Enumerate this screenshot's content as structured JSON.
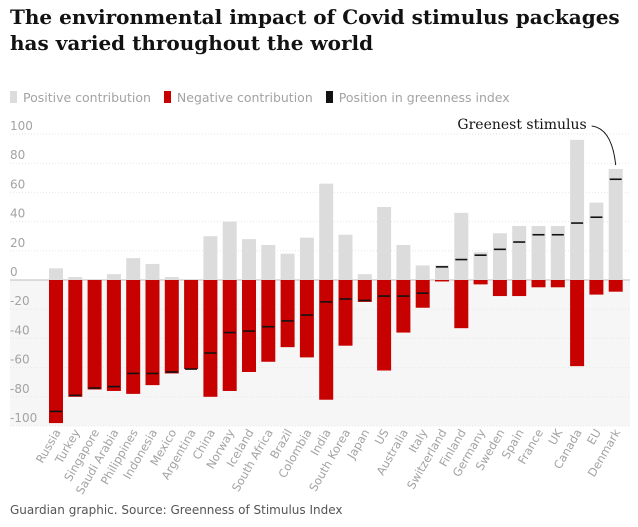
{
  "title": "The environmental impact of Covid stimulus packages has varied throughout the world",
  "legend": [
    {
      "label": "Positive contribution",
      "color": "#dcdcdc"
    },
    {
      "label": "Negative contribution",
      "color": "#c70000"
    },
    {
      "label": "Position in greenness index",
      "color": "#121212"
    }
  ],
  "footer": "Guardian graphic. Source: Greenness of Stimulus Index",
  "chart_data": {
    "type": "bar",
    "categories": [
      "Russia",
      "Turkey",
      "Singapore",
      "Saudi Arabia",
      "Philippines",
      "Indonesia",
      "Mexico",
      "Argentina",
      "China",
      "Norway",
      "Iceland",
      "South Africa",
      "Brazil",
      "Colombia",
      "India",
      "South Korea",
      "Japan",
      "US",
      "Australia",
      "Italy",
      "Switzerland",
      "Finland",
      "Germany",
      "Sweden",
      "Spain",
      "France",
      "UK",
      "Canada",
      "EU",
      "Denmark"
    ],
    "series": [
      {
        "name": "Positive contribution",
        "values": [
          8,
          2,
          0,
          4,
          15,
          11,
          2,
          0,
          30,
          40,
          28,
          24,
          18,
          29,
          66,
          31,
          4,
          50,
          24,
          10,
          10,
          46,
          19,
          32,
          37,
          37,
          37,
          96,
          53,
          76
        ]
      },
      {
        "name": "Negative contribution",
        "values": [
          -98,
          -80,
          -75,
          -76,
          -78,
          -72,
          -64,
          -61,
          -80,
          -76,
          -63,
          -56,
          -46,
          -53,
          -82,
          -45,
          -15,
          -62,
          -36,
          -19,
          -1,
          -33,
          -3,
          -11,
          -11,
          -5,
          -5,
          -59,
          -10,
          -8
        ]
      },
      {
        "name": "Position in greenness index",
        "values": [
          -90,
          -79,
          -74,
          -73,
          -64,
          -64,
          -63,
          -61,
          -50,
          -36,
          -35,
          -32,
          -28,
          -24,
          -15,
          -13,
          -14,
          -11,
          -11,
          -9,
          9,
          14,
          17,
          21,
          26,
          31,
          31,
          39,
          43,
          69
        ]
      }
    ],
    "ylim": [
      -100,
      100
    ],
    "yticks": [
      "100",
      "80",
      "60",
      "40",
      "20",
      "0",
      "-20",
      "-40",
      "-60",
      "-80",
      "-100"
    ],
    "grid": true,
    "annotation": {
      "text": "Greenest stimulus",
      "category": "Denmark"
    }
  }
}
